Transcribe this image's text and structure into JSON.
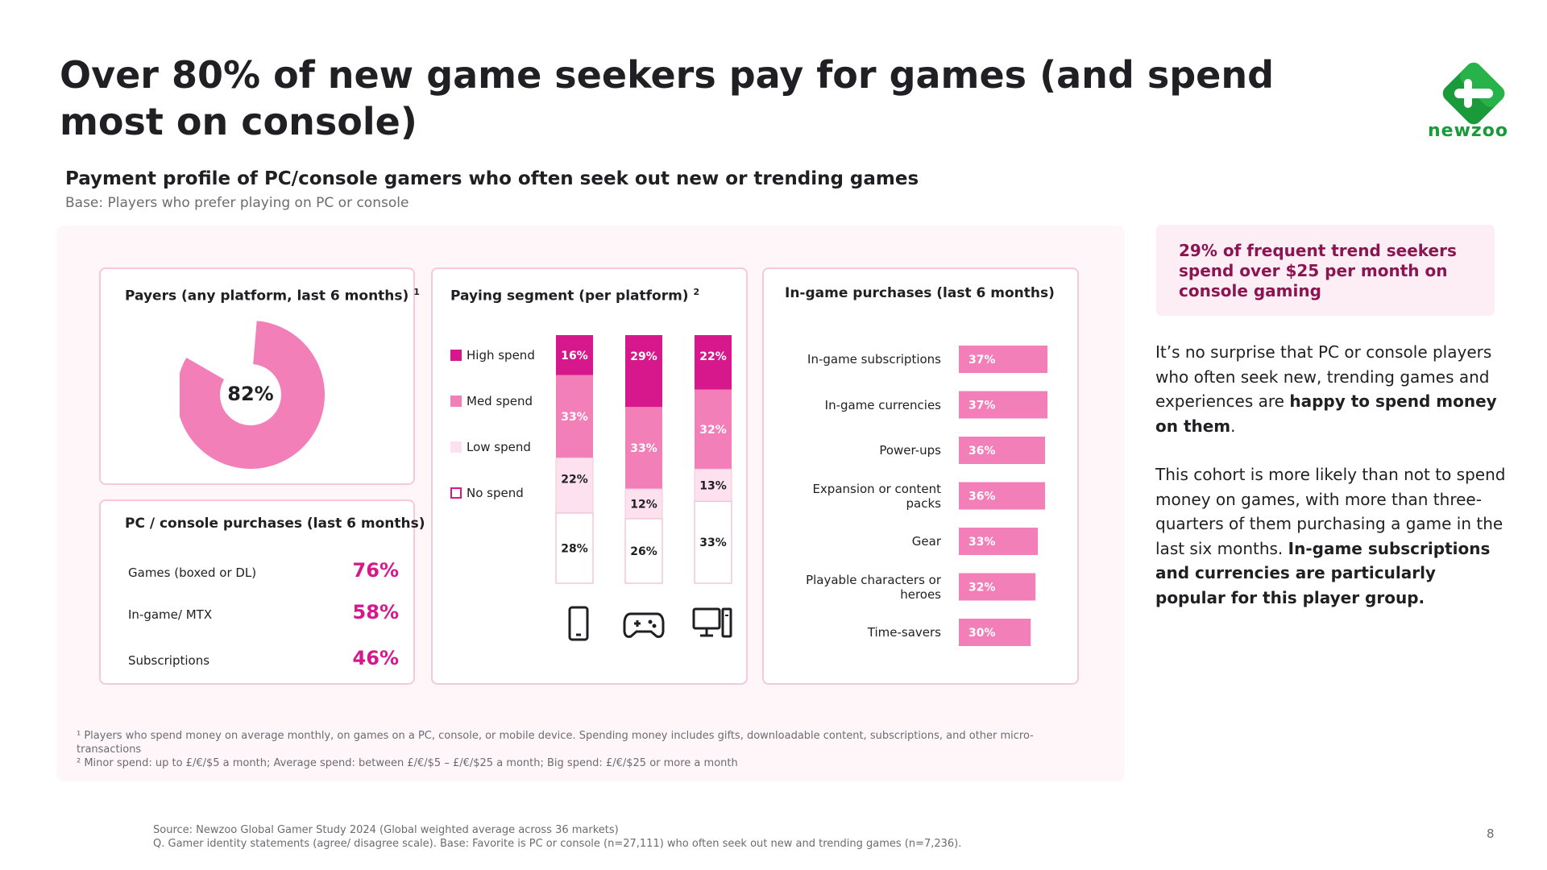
{
  "title": "Over 80% of new game seekers pay for games (and spend most on console)",
  "logo_text": "newzoo",
  "subtitle": "Payment profile of PC/console gamers who often seek out new or trending games",
  "base": "Base: Players who prefer playing on PC or console",
  "payers_card": {
    "title": "Payers (any platform, last 6 months)",
    "sup": "1"
  },
  "segment_card": {
    "title": "Paying segment (per platform)",
    "sup": "2"
  },
  "ingame_card": {
    "title": "In-game purchases (last 6 months)"
  },
  "purchases_card": {
    "title": "PC / console purchases (last 6 months)",
    "rows": [
      {
        "label": "Games (boxed or DL)",
        "value": "76%"
      },
      {
        "label": "In-game/ MTX",
        "value": "58%"
      },
      {
        "label": "Subscriptions",
        "value": "46%"
      }
    ]
  },
  "icons": [
    "mobile-phone-icon",
    "gamepad-icon",
    "desktop-computer-icon"
  ],
  "colors": {
    "high": "#d6188c",
    "med": "#f27fb8",
    "low": "#fde1ee",
    "none": "#ffffff",
    "accent": "#d6188c",
    "callout_text": "#8a1551"
  },
  "chart_data": [
    {
      "type": "pie",
      "label": "82%",
      "values": [
        82,
        18
      ],
      "categories": [
        "Payers",
        ""
      ]
    },
    {
      "type": "bar",
      "stacked": true,
      "categories": [
        "Mobile",
        "Console",
        "PC"
      ],
      "series": [
        {
          "name": "High spend",
          "values": [
            16,
            29,
            22
          ],
          "labels": [
            "16%",
            "29%",
            "22%"
          ]
        },
        {
          "name": "Med spend",
          "values": [
            33,
            33,
            32
          ],
          "labels": [
            "33%",
            "33%",
            "32%"
          ]
        },
        {
          "name": "Low spend",
          "values": [
            22,
            12,
            13
          ],
          "labels": [
            "22%",
            "12%",
            "13%"
          ]
        },
        {
          "name": "No spend",
          "values": [
            28,
            26,
            33
          ],
          "labels": [
            "28%",
            "26%",
            "33%"
          ]
        }
      ],
      "ylim": [
        0,
        100
      ]
    },
    {
      "type": "bar",
      "orientation": "horizontal",
      "categories": [
        "In-game subscriptions",
        "In-game currencies",
        "Power-ups",
        "Expansion or content packs",
        "Gear",
        "Playable characters or heroes",
        "Time-savers"
      ],
      "values": [
        37,
        37,
        36,
        36,
        33,
        32,
        30
      ],
      "labels": [
        "37%",
        "37%",
        "36%",
        "36%",
        "33%",
        "32%",
        "30%"
      ]
    }
  ],
  "footnotes": [
    "¹ Players who spend money on average monthly, on games on a PC, console, or mobile device. Spending money includes gifts, downloadable content, subscriptions, and other micro-transactions",
    "² Minor spend: up to £/€/$5 a month; Average spend: between £/€/$5 – £/€/$25 a month; Big spend: £/€/$25 or more a month"
  ],
  "source": [
    "Source: Newzoo Global Gamer Study 2024 (Global weighted average across 36 markets)",
    "Q. Gamer identity statements (agree/ disagree scale). Base: Favorite is PC or console (n=27,111) who often seek out new and trending games (n=7,236)."
  ],
  "page_number": "8",
  "callout": "29% of frequent trend seekers spend over $25 per month on console gaming",
  "body": {
    "p1_plain": "It’s no surprise that PC or console players who often seek new, trending games and experiences are ",
    "p1_bold": "happy to spend money on them",
    "p1_end": ".",
    "p2_plain": "This cohort is more likely than not to spend money on games, with more than three-quarters of them purchasing a game in the last six months. ",
    "p2_bold": "In-game subscriptions and currencies are particularly popular for this player group."
  }
}
